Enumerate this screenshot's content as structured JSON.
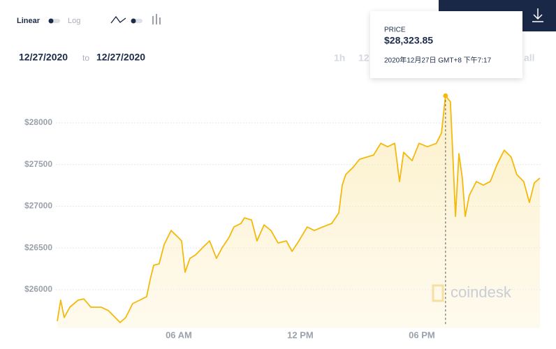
{
  "controls": {
    "linear": "Linear",
    "log": "Log"
  },
  "date_range": {
    "from": "12/27/2020",
    "to_word": "to",
    "to": "12/27/2020"
  },
  "range_buttons": [
    "1h",
    "12",
    "all"
  ],
  "tooltip": {
    "label": "PRICE",
    "price": "$28,323.85",
    "time": "2020年12月27日 GMT+8 下午7:17"
  },
  "watermark": "coindesk",
  "chart_data": {
    "type": "line",
    "x": [
      0,
      0.17,
      0.34,
      0.62,
      1.03,
      1.31,
      1.66,
      2.17,
      2.52,
      2.86,
      3.1,
      3.38,
      3.72,
      4.07,
      4.41,
      4.59,
      4.76,
      5.03,
      5.28,
      5.62,
      5.97,
      6.14,
      6.31,
      6.55,
      6.83,
      7.17,
      7.52,
      7.86,
      8.14,
      8.48,
      8.72,
      9.07,
      9.24,
      9.59,
      9.86,
      10.21,
      10.55,
      10.9,
      11.31,
      11.59,
      11.93,
      12.34,
      12.69,
      13.1,
      13.55,
      13.9,
      14.07,
      14.24,
      14.59,
      14.93,
      15.28,
      15.62,
      15.97,
      16.31,
      16.66,
      16.9,
      17.1,
      17.52,
      17.86,
      18.28,
      18.72,
      18.97,
      19.17,
      19.41,
      19.52,
      19.66,
      19.83,
      20.0,
      20.14,
      20.34,
      20.69,
      21.03,
      21.38,
      21.72,
      22.07,
      22.41,
      22.69,
      23.03,
      23.31,
      23.55,
      23.83
    ],
    "series": [
      {
        "name": "Price",
        "color": "#f4b90c",
        "values": [
          25624,
          25875,
          25666,
          25791,
          25875,
          25890,
          25790,
          25790,
          25750,
          25666,
          25607,
          25666,
          25833,
          25875,
          25916,
          26125,
          26293,
          26310,
          26543,
          26710,
          26627,
          26585,
          26209,
          26376,
          26418,
          26502,
          26585,
          26376,
          26502,
          26627,
          26752,
          26794,
          26861,
          26836,
          26585,
          26777,
          26710,
          26560,
          26585,
          26460,
          26585,
          26752,
          26710,
          26752,
          26794,
          26920,
          27254,
          27380,
          27463,
          27564,
          27590,
          27614,
          27755,
          27714,
          27755,
          27296,
          27647,
          27547,
          27755,
          27714,
          27755,
          27881,
          28323.85,
          28254,
          27672,
          26878,
          27630,
          27338,
          26878,
          27129,
          27296,
          27254,
          27296,
          27505,
          27672,
          27590,
          27380,
          27296,
          27045,
          27280,
          27338
        ]
      }
    ],
    "xlim": [
      0,
      23.9
    ],
    "xticks": [
      {
        "value": 6,
        "label": "06 AM"
      },
      {
        "value": 12,
        "label": "12 PM"
      },
      {
        "value": 18,
        "label": "06 PM"
      }
    ],
    "ylim": [
      25540,
      28385
    ],
    "yticks": [
      {
        "value": 26000,
        "label": "$26000"
      },
      {
        "value": 26500,
        "label": "$26500"
      },
      {
        "value": 27000,
        "label": "$27000"
      },
      {
        "value": 27500,
        "label": "$27500"
      },
      {
        "value": 28000,
        "label": "$28000"
      }
    ],
    "grid": true
  }
}
